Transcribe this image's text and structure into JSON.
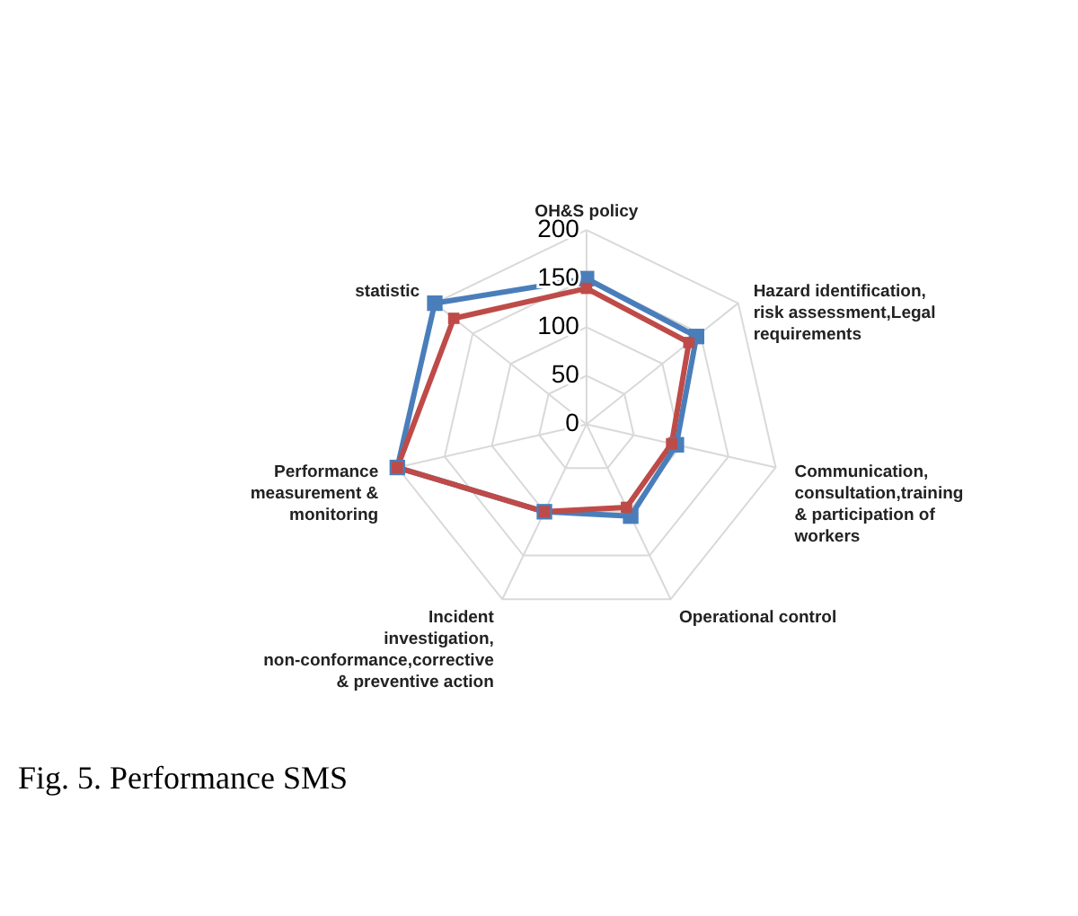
{
  "chart_data": {
    "type": "radar",
    "categories": [
      "OH&S policy",
      "Hazard identification, risk assessment,Legal requirements",
      "Communication, consultation,training & participation of workers",
      "Operational control",
      "Incident investigation, non-conformance,corrective & preventive action",
      "Performance measurement & monitoring",
      "statistic"
    ],
    "series": [
      {
        "color": "#4a7ebb",
        "values": [
          150,
          145,
          95,
          105,
          100,
          200,
          200
        ]
      },
      {
        "color": "#be4b48",
        "values": [
          140,
          135,
          90,
          95,
          100,
          200,
          175
        ]
      }
    ],
    "ylim": [
      0,
      200
    ],
    "yticks": [
      0,
      50,
      100,
      150,
      200
    ],
    "grid": true,
    "marker": "square",
    "line_style": "solid",
    "annotations": [
      "Fig. 5. Performance SMS"
    ]
  }
}
